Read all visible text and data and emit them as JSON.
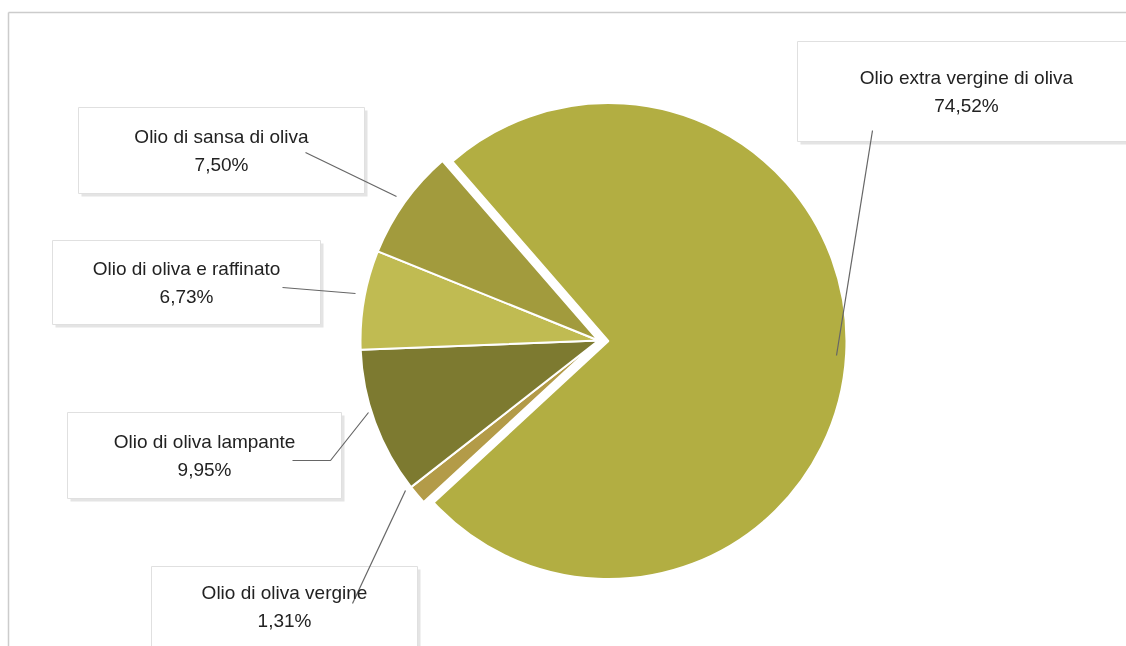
{
  "chart_data": {
    "type": "pie",
    "categories": [
      "Olio extra vergine di oliva",
      "Olio di oliva vergine",
      "Olio di oliva lampante",
      "Olio di oliva e raffinato",
      "Olio di sansa di oliva"
    ],
    "values": [
      74.52,
      1.31,
      9.95,
      6.73,
      7.5
    ],
    "colors": [
      "#b2ae42",
      "#b39b48",
      "#7d7a30",
      "#c0bb52",
      "#a29b3d"
    ],
    "value_labels": [
      "74,52%",
      "1,31%",
      "9,95%",
      "6,73%",
      "7,50%"
    ]
  }
}
